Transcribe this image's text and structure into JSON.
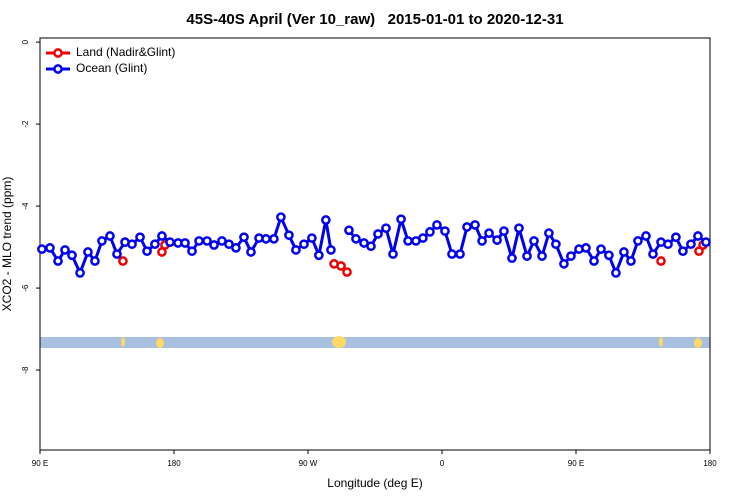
{
  "chart_data": {
    "type": "line",
    "title": "45S-40S April (Ver 10_raw)   2015-01-01 to 2020-12-31",
    "xlabel": "Longitude (deg E)",
    "ylabel": "XCO2 - MLO trend (ppm)",
    "xlim": [
      90,
      540
    ],
    "ylim": [
      -9.95,
      0.1
    ],
    "xticks": [
      {
        "value": 90,
        "label": "90 E"
      },
      {
        "value": 180,
        "label": "180"
      },
      {
        "value": 270,
        "label": "90 W"
      },
      {
        "value": 360,
        "label": "0"
      },
      {
        "value": 450,
        "label": "90 E"
      },
      {
        "value": 540,
        "label": "180"
      }
    ],
    "yticks": [
      0,
      -2,
      -4,
      -6,
      -8
    ],
    "legend": "upper left",
    "series": [
      {
        "name": "Land (Nadir&Glint)",
        "color": "#ee0000",
        "x": [
          145.7,
          158,
          171.9,
          173.9,
          230,
          287.5,
          292.2,
          296.2,
          400,
          507.1,
          520,
          532.6,
          535.3
        ],
        "values": [
          -5.34,
          null,
          -5.12,
          -4.95,
          null,
          -5.41,
          -5.46,
          -5.61,
          null,
          -5.34,
          null,
          -5.1,
          -4.95
        ]
      },
      {
        "name": "Ocean (Glint)",
        "color": "#0000ee",
        "x": [
          91.3,
          96.7,
          102.1,
          106.8,
          111.5,
          116.9,
          122.2,
          126.9,
          131.6,
          137,
          141.7,
          147.1,
          151.8,
          157.2,
          161.9,
          167.2,
          171.9,
          177.3,
          182.7,
          187.4,
          192.1,
          196.8,
          202.2,
          206.9,
          212.2,
          216.9,
          221.6,
          227,
          231.7,
          237.1,
          241.8,
          247.1,
          251.8,
          257.2,
          261.9,
          267.3,
          272.6,
          277.3,
          282,
          285.4,
          291,
          297.5,
          302.2,
          307.6,
          312.3,
          317,
          322.4,
          327.1,
          332.5,
          337.2,
          342.5,
          347.2,
          351.9,
          356.6,
          362,
          366.7,
          372.1,
          376.8,
          382.2,
          386.9,
          391.6,
          397,
          401.6,
          407,
          411.7,
          417.1,
          421.8,
          427.2,
          431.8,
          436.5,
          441.9,
          446.6,
          452,
          456.7,
          462.1,
          466.8,
          472.1,
          476.8,
          482.2,
          486.9,
          491.6,
          497,
          501.7,
          507.1,
          511.8,
          517.1,
          521.8,
          527.2,
          531.9,
          537.3
        ],
        "values": [
          -5.05,
          -5.02,
          -5.34,
          -5.07,
          -5.2,
          -5.63,
          -5.12,
          -5.34,
          -4.85,
          -4.73,
          -5.17,
          -4.88,
          -4.93,
          -4.76,
          -5.1,
          -4.93,
          -4.73,
          -4.88,
          -4.9,
          -4.9,
          -5.1,
          -4.85,
          -4.85,
          -4.95,
          -4.85,
          -4.93,
          -5.02,
          -4.76,
          -5.12,
          -4.78,
          -4.8,
          -4.8,
          -4.27,
          -4.71,
          -5.07,
          -4.93,
          -4.78,
          -5.2,
          -4.34,
          -5.07,
          null,
          -4.59,
          -4.8,
          -4.9,
          -4.98,
          -4.68,
          -4.54,
          -5.17,
          -4.32,
          -4.85,
          -4.85,
          -4.78,
          -4.63,
          -4.46,
          -4.61,
          -5.17,
          -5.17,
          -4.51,
          -4.46,
          -4.85,
          -4.66,
          -4.83,
          -4.61,
          -5.27,
          -4.54,
          -5.22,
          -4.85,
          -5.22,
          -4.66,
          -4.93,
          -5.41,
          -5.22,
          -5.05,
          -5.02,
          -5.34,
          -5.05,
          -5.2,
          -5.63,
          -5.12,
          -5.34,
          -4.85,
          -4.73,
          -5.17,
          -4.88,
          -4.93,
          -4.76,
          -5.1,
          -4.93,
          -4.73,
          -4.88
        ]
      }
    ]
  }
}
